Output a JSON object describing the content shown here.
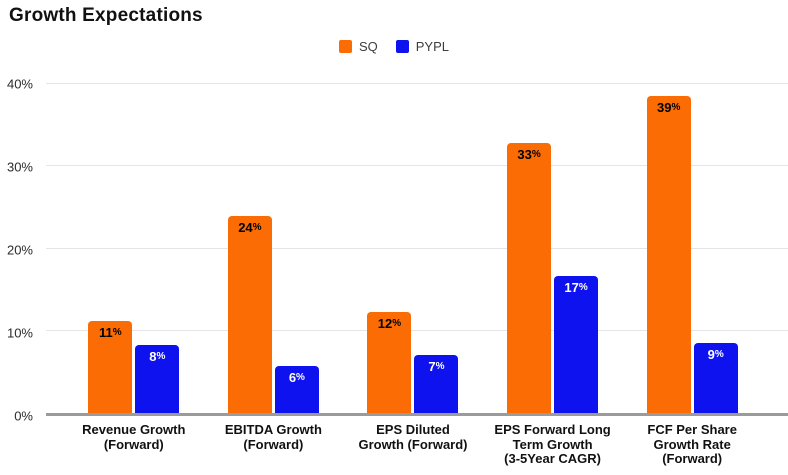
{
  "chart_data": {
    "type": "bar",
    "title": "Growth Expectations",
    "categories": [
      "Revenue Growth\n(Forward)",
      "EBITDA Growth\n(Forward)",
      "EPS Diluted\nGrowth (Forward)",
      "EPS Forward Long\nTerm Growth\n(3-5Year CAGR)",
      "FCF Per Share\nGrowth Rate\n(Forward)"
    ],
    "series": [
      {
        "name": "SQ",
        "color": "#fb6c05",
        "label_color": "#000000",
        "values": [
          11,
          24,
          12,
          33,
          39
        ],
        "data_labels": [
          "11%",
          "24%",
          "12%",
          "33%",
          "39%"
        ],
        "bar_heights_pct": [
          11.2,
          24.0,
          12.3,
          32.8,
          38.5
        ]
      },
      {
        "name": "PYPL",
        "color": "#0d12ee",
        "label_color": "#ffffff",
        "values": [
          8,
          6,
          7,
          17,
          9
        ],
        "data_labels": [
          "8%",
          "6%",
          "7%",
          "17%",
          "9%"
        ],
        "bar_heights_pct": [
          8.3,
          5.7,
          7.1,
          16.7,
          8.5
        ]
      }
    ],
    "xlabel": "",
    "ylabel": "",
    "ylim": [
      0,
      40
    ],
    "yticks": [
      {
        "value": 0,
        "label": "0%"
      },
      {
        "value": 10,
        "label": "10%"
      },
      {
        "value": 20,
        "label": "20%"
      },
      {
        "value": 30,
        "label": "30%"
      },
      {
        "value": 40,
        "label": "40%"
      }
    ],
    "grid": "horizontal",
    "legend_position": "top-center",
    "percent_sign": "%"
  },
  "colors": {
    "background": "#ffffff",
    "gridline": "#e5e5e5",
    "axis_line": "#9b9b9b",
    "title_text": "#111111",
    "tick_text": "#2b2b2b",
    "category_text": "#111111",
    "legend_text": "#3d3d3d"
  }
}
